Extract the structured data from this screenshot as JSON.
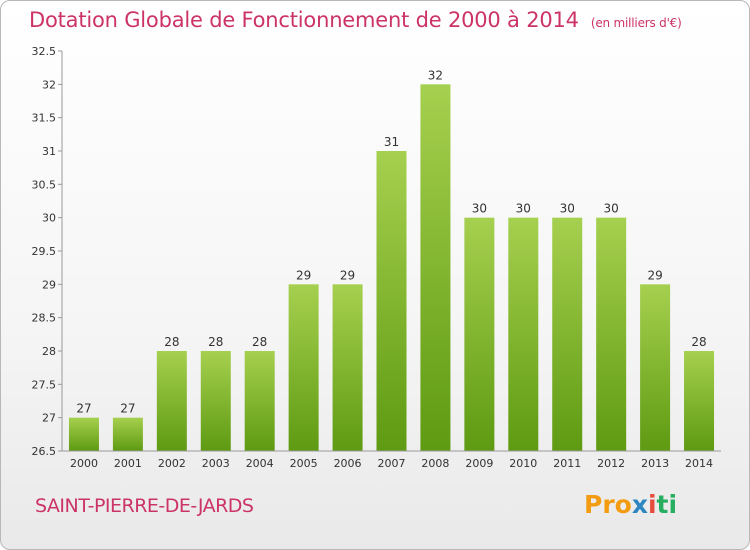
{
  "chart_data": {
    "type": "bar",
    "title": "Dotation Globale de Fonctionnement de 2000 à 2014",
    "subtitle": "(en milliers d'€)",
    "categories": [
      "2000",
      "2001",
      "2002",
      "2003",
      "2004",
      "2005",
      "2006",
      "2007",
      "2008",
      "2009",
      "2010",
      "2011",
      "2012",
      "2013",
      "2014"
    ],
    "values": [
      27,
      27,
      28,
      28,
      28,
      29,
      29,
      31,
      32,
      30,
      30,
      30,
      30,
      29,
      28
    ],
    "data_labels": [
      "27",
      "27",
      "28",
      "28",
      "28",
      "29",
      "29",
      "31",
      "32",
      "30",
      "30",
      "30",
      "30",
      "29",
      "28"
    ],
    "y_ticks": [
      "26.5",
      "27",
      "27.5",
      "28",
      "28.5",
      "29",
      "29.5",
      "30",
      "30.5",
      "31",
      "31.5",
      "32",
      "32.5"
    ],
    "ylim": [
      26.5,
      32.5
    ],
    "grid": false,
    "colors": {
      "bar_top": "#a6d04f",
      "bar_bottom": "#5e9a12",
      "title": "#cc3366"
    }
  },
  "footer": {
    "commune": "SAINT-PIERRE-DE-JARDS",
    "logo_text": "Proxiti"
  }
}
